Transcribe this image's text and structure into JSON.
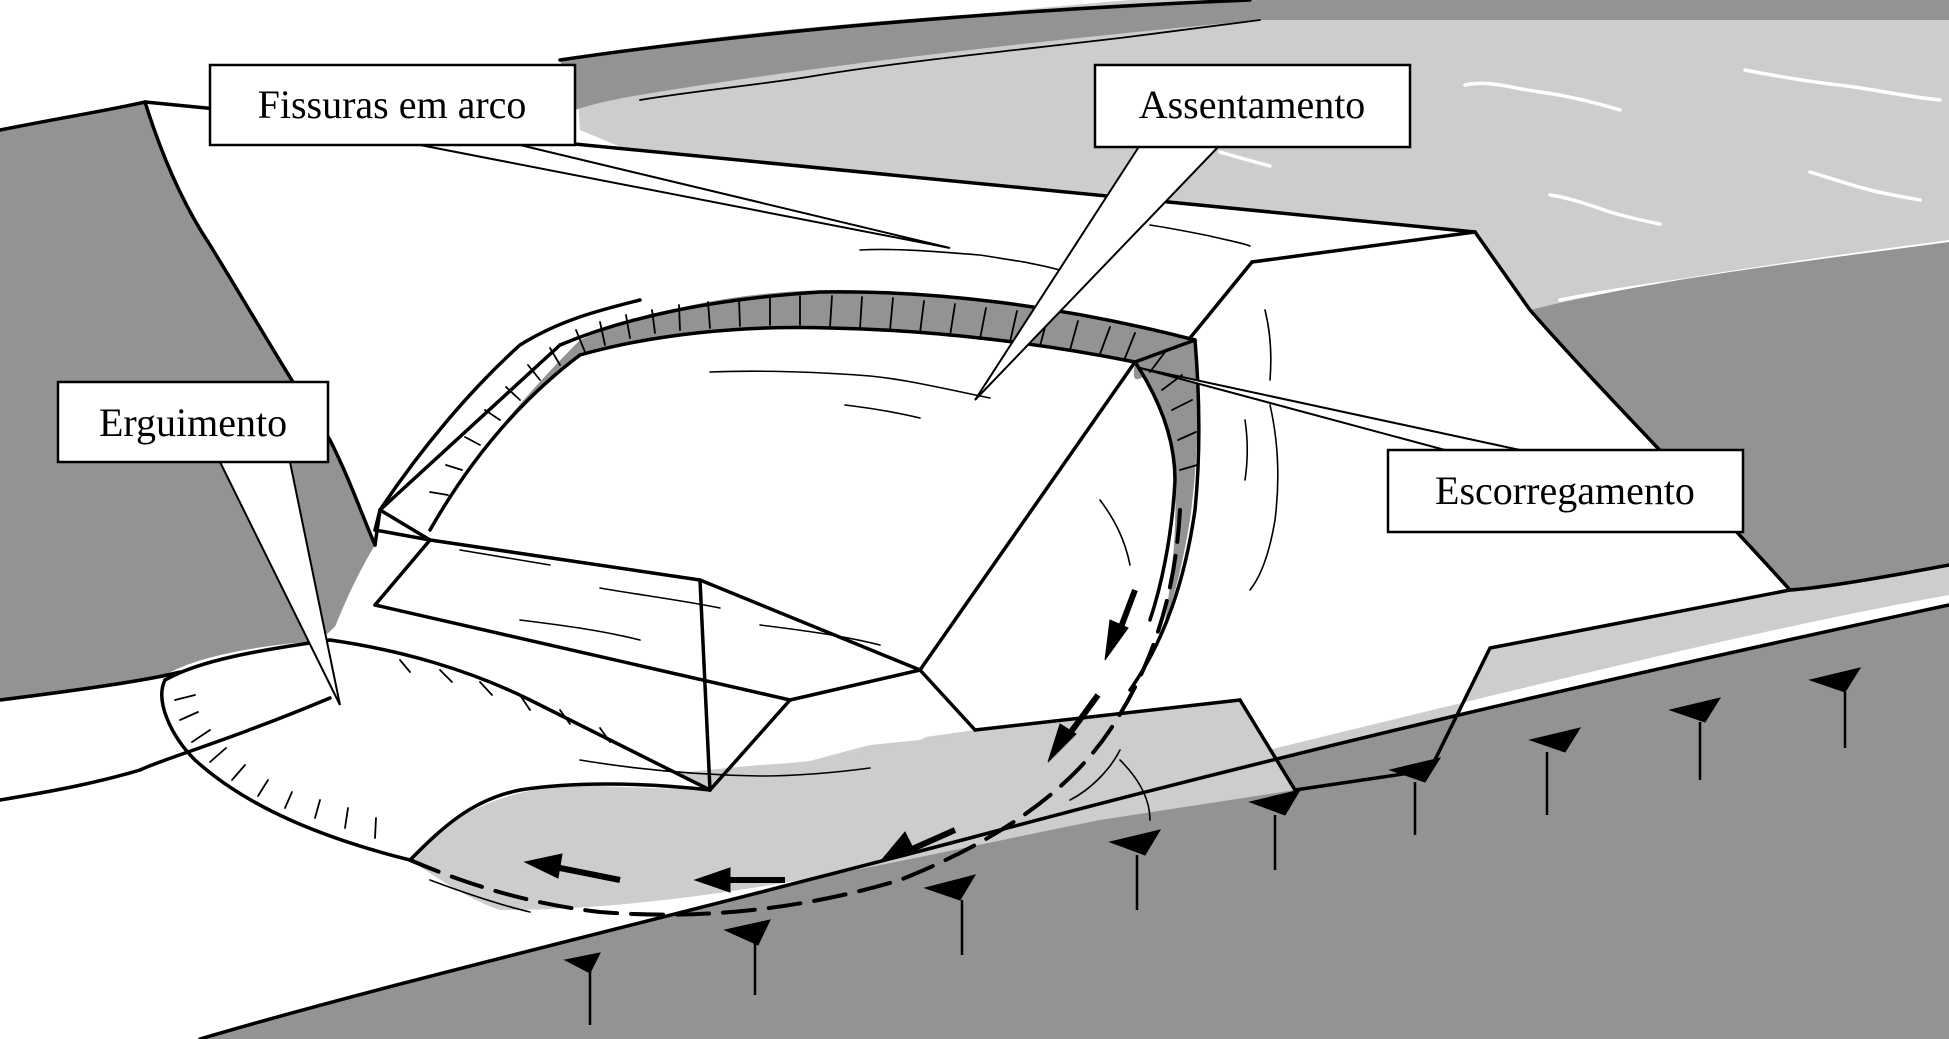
{
  "diagram": {
    "labels": {
      "fissuras": "Fissuras em arco",
      "assentamento": "Assentamento",
      "erguimento": "Erguimento",
      "escorregamento": "Escorregamento"
    },
    "colors": {
      "dark_gray": "#939393",
      "light_gray": "#cdcdcd",
      "white": "#ffffff",
      "outline": "#000000"
    }
  }
}
